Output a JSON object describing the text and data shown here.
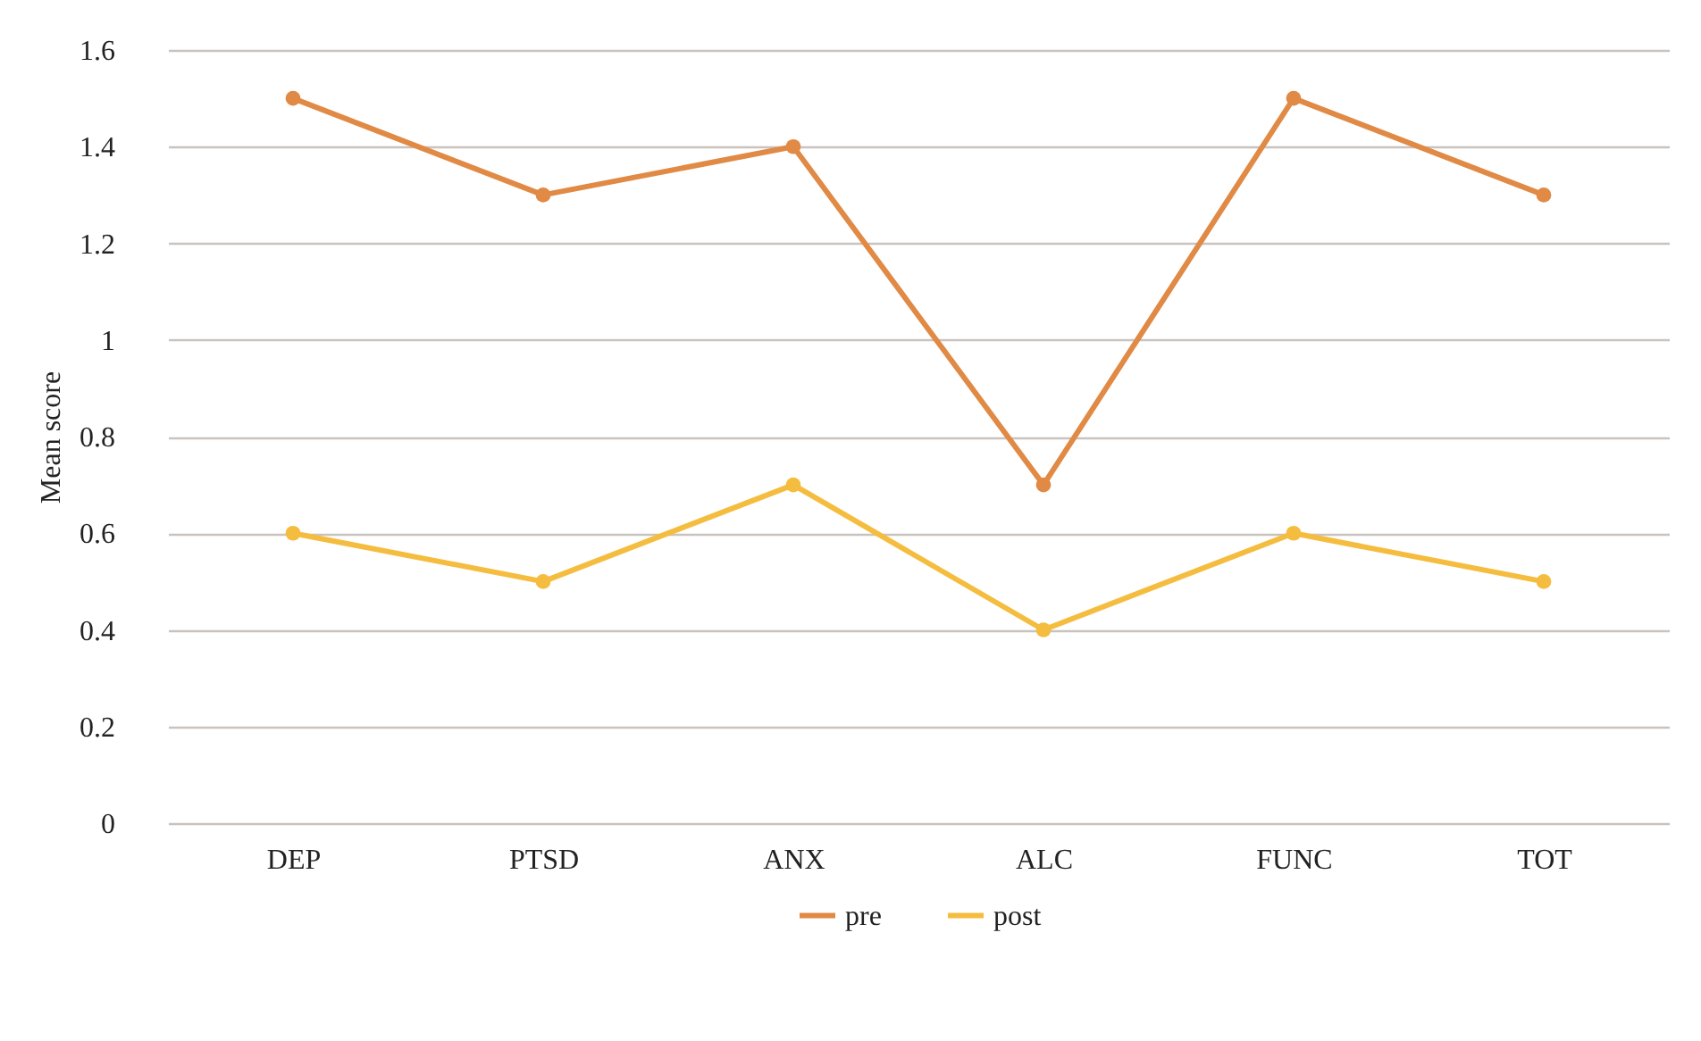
{
  "chart_data": {
    "type": "line",
    "ylabel": "Mean score",
    "categories": [
      "DEP",
      "PTSD",
      "ANX",
      "ALC",
      "FUNC",
      "TOT"
    ],
    "series": [
      {
        "name": "pre",
        "color": "#e08a45",
        "values": [
          1.5,
          1.3,
          1.4,
          0.7,
          1.5,
          1.3
        ]
      },
      {
        "name": "post",
        "color": "#f5bd3f",
        "values": [
          0.6,
          0.5,
          0.7,
          0.4,
          0.6,
          0.5
        ]
      }
    ],
    "ylim": [
      0,
      1.6
    ],
    "yticks": [
      0,
      0.2,
      0.4,
      0.6,
      0.8,
      1,
      1.2,
      1.4,
      1.6
    ],
    "grid": "y",
    "legend": "bottom",
    "marker": "circle",
    "line_style": "solid"
  }
}
